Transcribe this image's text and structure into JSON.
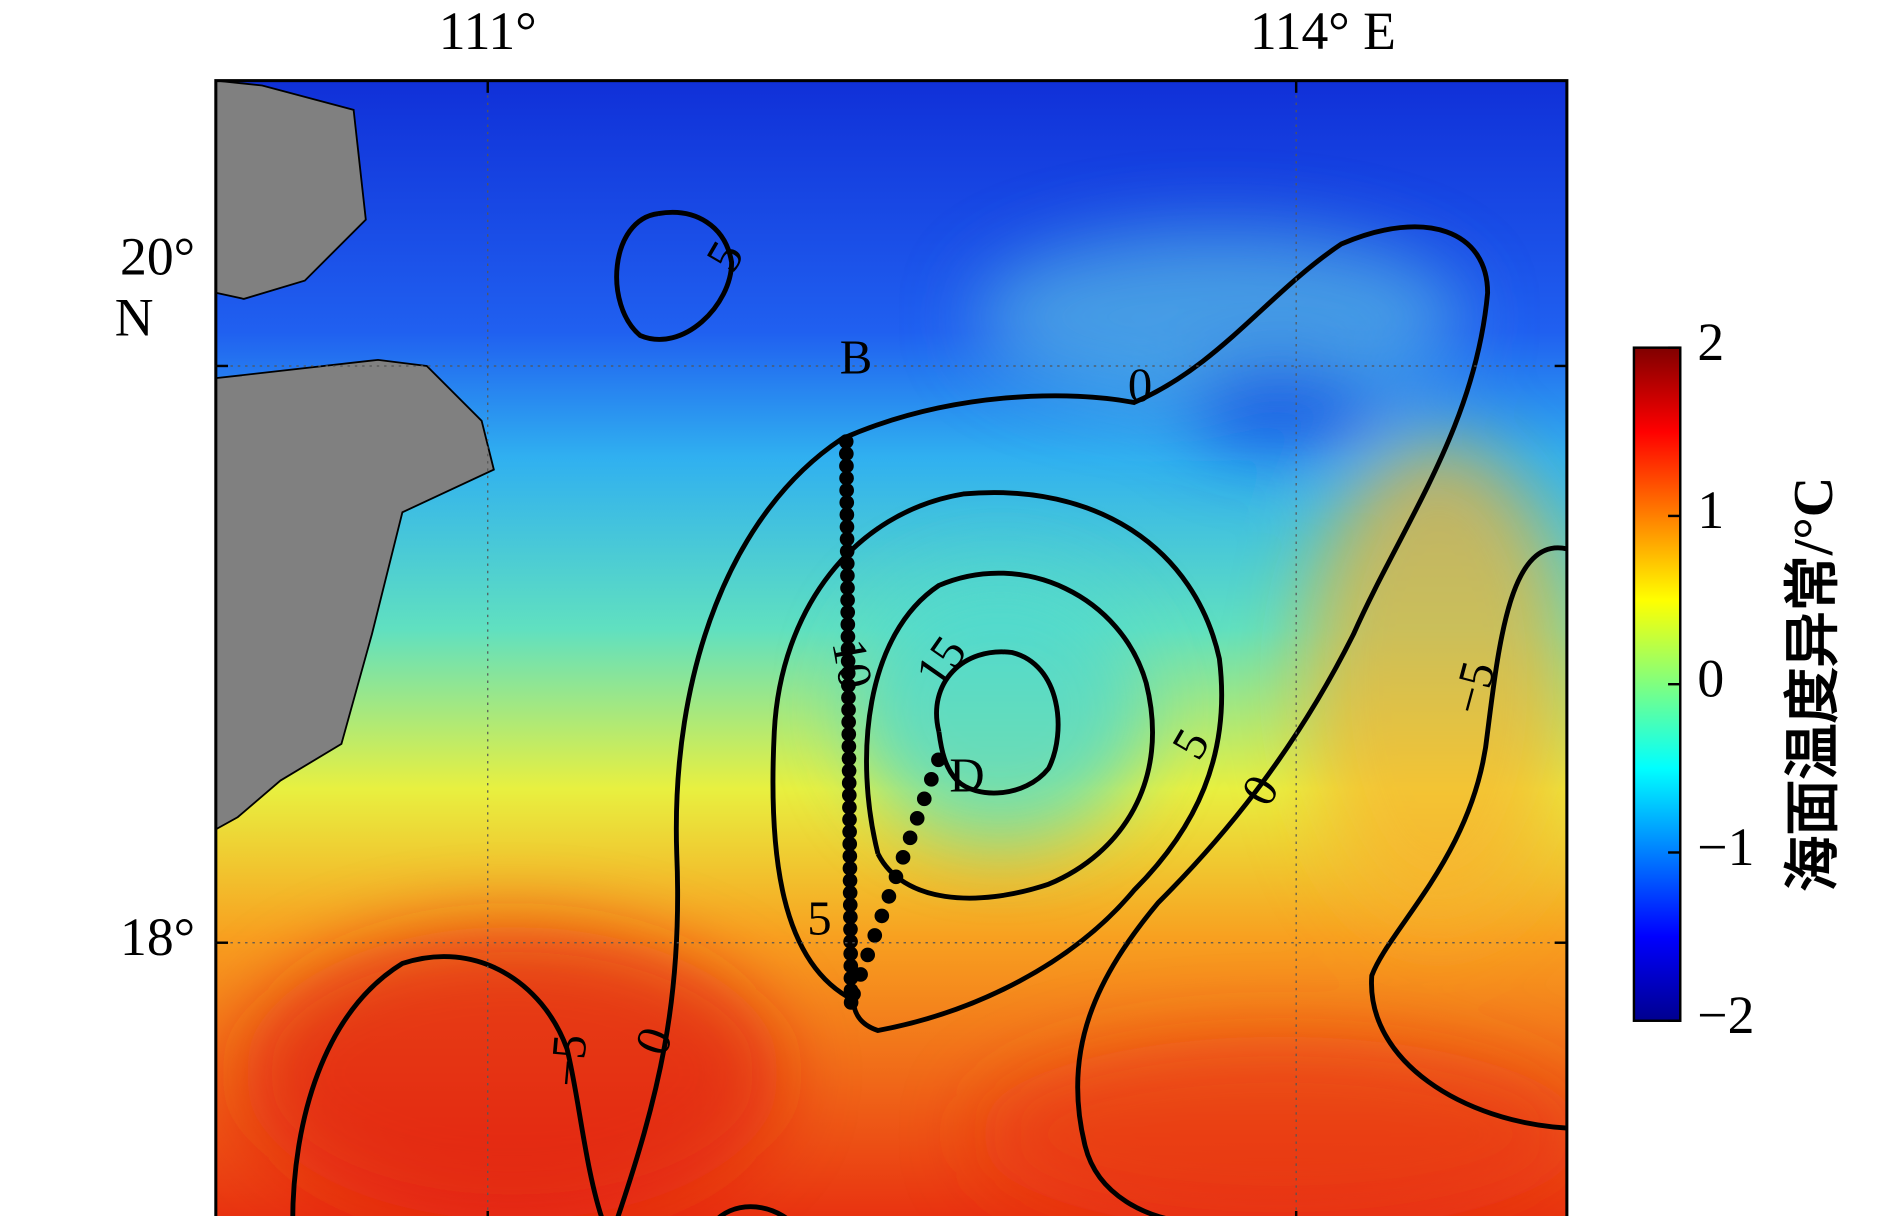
{
  "map": {
    "lon_ticks": [
      {
        "value": 111,
        "label": "111°"
      },
      {
        "value": 114,
        "label": "114° E"
      }
    ],
    "lat_ticks": [
      {
        "value": 20,
        "label": "20°"
      },
      {
        "value": 18,
        "label": "18°"
      }
    ],
    "lat_unit": "N",
    "colorbar": {
      "title": "海面温度异常/°C",
      "clim": [
        -2,
        2
      ],
      "ticks": [
        {
          "value": 2,
          "label": "2"
        },
        {
          "value": 1,
          "label": "1"
        },
        {
          "value": 0,
          "label": "0"
        },
        {
          "value": -1,
          "label": "−1"
        },
        {
          "value": -2,
          "label": "−2"
        }
      ]
    },
    "contour_labels": [
      "0",
      "5",
      "10",
      "15",
      "5",
      "0",
      "−5",
      "5",
      "−5",
      "0"
    ],
    "stations": [
      "B",
      "D"
    ]
  }
}
